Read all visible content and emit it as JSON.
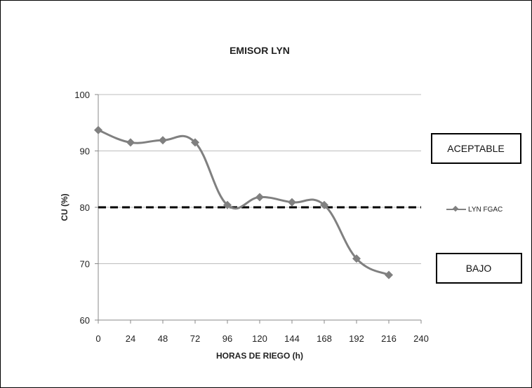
{
  "chart_data": {
    "type": "line",
    "title": "EMISOR LYN",
    "xlabel": "HORAS DE RIEGO (h)",
    "ylabel": "CU (%)",
    "xlim": [
      0,
      240
    ],
    "ylim": [
      60,
      100
    ],
    "xticks": [
      "0",
      "24",
      "48",
      "72",
      "96",
      "120",
      "144",
      "168",
      "192",
      "216",
      "240"
    ],
    "yticks": [
      "60",
      "70",
      "80",
      "90",
      "100"
    ],
    "grid": "horizontal",
    "legend_position": "right",
    "series": [
      {
        "name": "LYN  FGAC",
        "color": "#808080",
        "marker": "diamond",
        "smooth": true,
        "x": [
          0,
          24,
          48,
          72,
          96,
          120,
          144,
          168,
          192,
          216
        ],
        "y": [
          93.7,
          91.5,
          91.9,
          91.5,
          80.4,
          81.8,
          80.9,
          80.4,
          70.9,
          68.0
        ]
      }
    ],
    "threshold": {
      "value": 80,
      "style": "dashed",
      "color": "#000000"
    },
    "annotations": [
      "ACEPTABLE",
      "BAJO"
    ]
  }
}
